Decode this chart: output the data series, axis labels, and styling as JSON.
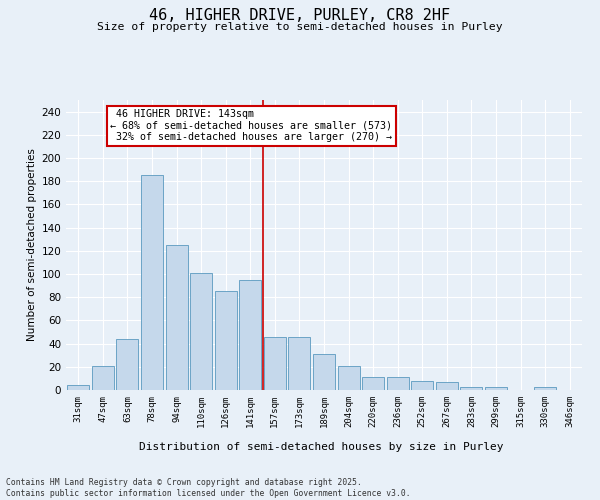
{
  "title": "46, HIGHER DRIVE, PURLEY, CR8 2HF",
  "subtitle": "Size of property relative to semi-detached houses in Purley",
  "xlabel": "Distribution of semi-detached houses by size in Purley",
  "ylabel": "Number of semi-detached properties",
  "categories": [
    "31sqm",
    "47sqm",
    "63sqm",
    "78sqm",
    "94sqm",
    "110sqm",
    "126sqm",
    "141sqm",
    "157sqm",
    "173sqm",
    "189sqm",
    "204sqm",
    "220sqm",
    "236sqm",
    "252sqm",
    "267sqm",
    "283sqm",
    "299sqm",
    "315sqm",
    "330sqm",
    "346sqm"
  ],
  "values": [
    4,
    21,
    44,
    185,
    125,
    101,
    85,
    95,
    46,
    46,
    31,
    21,
    11,
    11,
    8,
    7,
    3,
    3,
    0,
    3,
    0
  ],
  "bar_color": "#c5d8eb",
  "bar_edge_color": "#5a9abf",
  "pct_smaller": 68,
  "pct_larger": 32,
  "count_smaller": 573,
  "count_larger": 270,
  "vline_x_index": 7.5,
  "ylim": [
    0,
    250
  ],
  "yticks": [
    0,
    20,
    40,
    60,
    80,
    100,
    120,
    140,
    160,
    180,
    200,
    220,
    240
  ],
  "bg_color": "#e8f0f8",
  "grid_color": "#ffffff",
  "annotation_box_color": "#cc0000",
  "property_label": "46 HIGHER DRIVE: 143sqm",
  "footer_line1": "Contains HM Land Registry data © Crown copyright and database right 2025.",
  "footer_line2": "Contains public sector information licensed under the Open Government Licence v3.0."
}
